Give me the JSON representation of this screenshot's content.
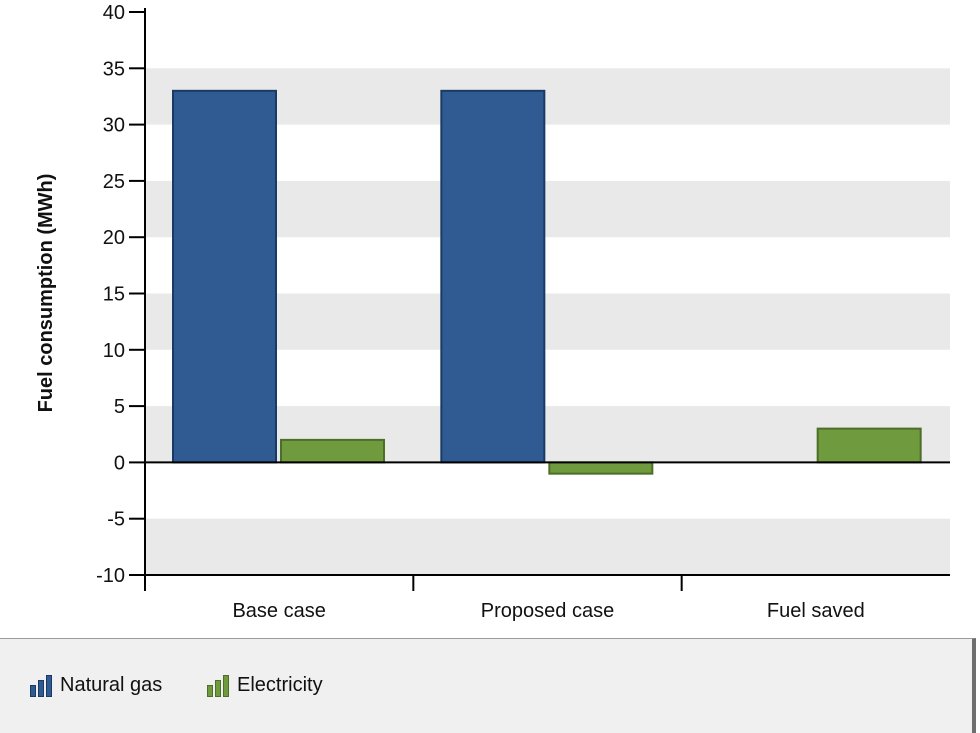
{
  "chart_data": {
    "type": "bar",
    "categories": [
      "Base case",
      "Proposed case",
      "Fuel saved"
    ],
    "series": [
      {
        "name": "Natural gas",
        "values": [
          33,
          33,
          0
        ],
        "color": "#2f5b92",
        "edge": "#1a3a66"
      },
      {
        "name": "Electricity",
        "values": [
          2,
          -1,
          3
        ],
        "color": "#6f9a3e",
        "edge": "#4c6e28"
      }
    ],
    "ylabel": "Fuel consumption (MWh)",
    "ylim": [
      -10,
      40
    ],
    "yticks": [
      40,
      35,
      30,
      25,
      20,
      15,
      10,
      5,
      0,
      -5,
      -10
    ],
    "ytick_labels": [
      "40",
      "35",
      "30",
      "25",
      "20",
      "15",
      "10",
      "5",
      "0",
      "-5",
      "-10"
    ],
    "grid": "alternating horizontal bands",
    "band_color": "#e9e9e9",
    "legend_position": "bottom-left"
  }
}
